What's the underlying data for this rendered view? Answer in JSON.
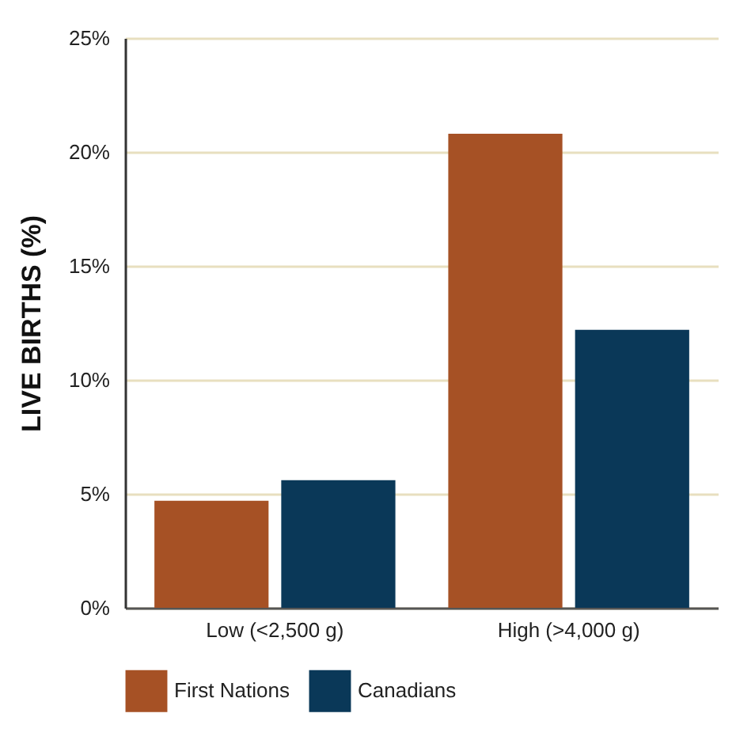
{
  "chart_data": {
    "type": "bar",
    "ylabel": "LIVE BIRTHS (%)",
    "categories": [
      "Low (<2,500 g)",
      "High (>4,000 g)"
    ],
    "series": [
      {
        "name": "First Nations",
        "color": "#a65125",
        "values": [
          4.7,
          20.8
        ]
      },
      {
        "name": "Canadians",
        "color": "#0a3858",
        "values": [
          5.6,
          12.2
        ]
      }
    ],
    "ylim": [
      0,
      25
    ],
    "yticks": [
      {
        "value": 0,
        "label": "0%"
      },
      {
        "value": 5,
        "label": "5%"
      },
      {
        "value": 10,
        "label": "10%"
      },
      {
        "value": 15,
        "label": "15%"
      },
      {
        "value": 20,
        "label": "20%"
      },
      {
        "value": 25,
        "label": "25%"
      }
    ],
    "grid": "y",
    "legend": "bottom left"
  }
}
